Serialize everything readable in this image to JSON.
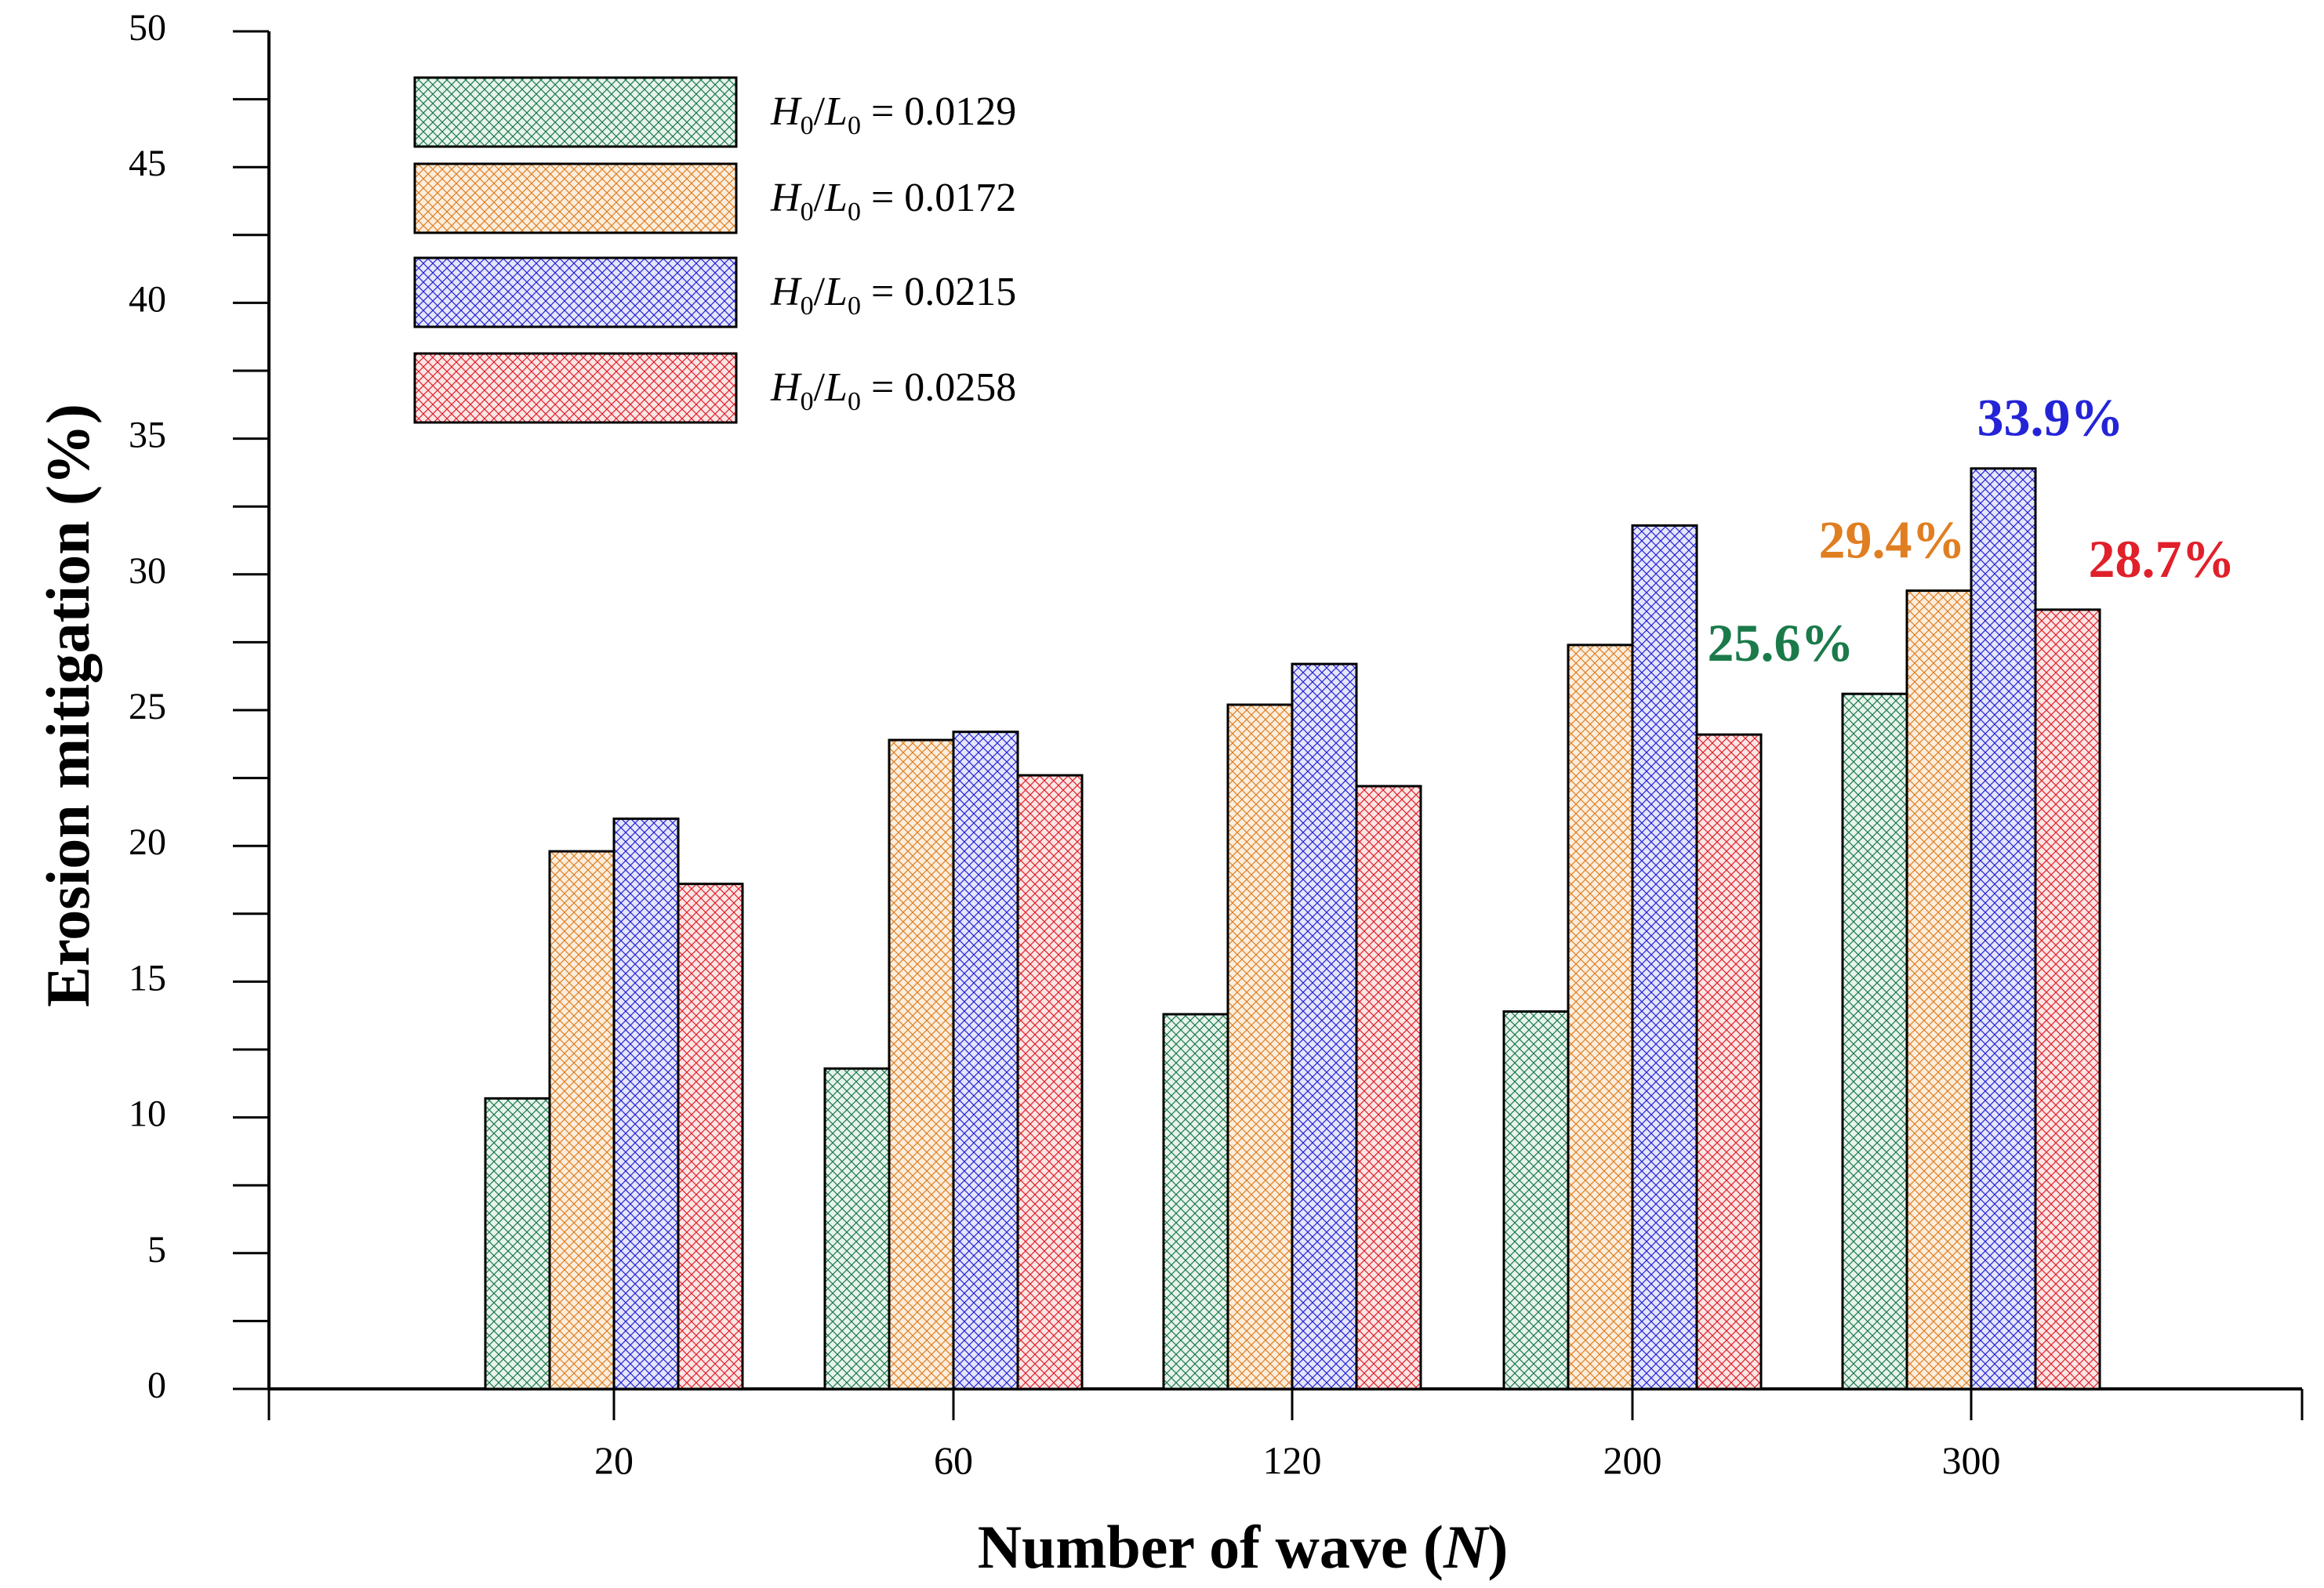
{
  "colors": {
    "green": "#1b7a4a",
    "orange": "#e07e22",
    "blue": "#2424d6",
    "red": "#e0202a",
    "green_fill": "#e8f3ec",
    "orange_fill": "#fbeede",
    "blue_fill": "#e6e6fa",
    "red_fill": "#fbe6e6",
    "axis": "#000000"
  },
  "chart_data": {
    "type": "bar",
    "title": "",
    "xlabel": "Number of wave (N)",
    "xlabel_main": "Number of wave (",
    "xlabel_var": "N",
    "xlabel_end": ")",
    "ylabel": "Erosion mitigation (%)",
    "ylim": [
      0,
      50
    ],
    "ytick_step": 5,
    "yticks": [
      "0",
      "5",
      "10",
      "15",
      "20",
      "25",
      "30",
      "35",
      "40",
      "45",
      "50"
    ],
    "categories": [
      "20",
      "60",
      "120",
      "200",
      "300"
    ],
    "series": [
      {
        "name": "H0/L0 = 0.0129",
        "h": "H",
        "h_sub": "0",
        "l": "L",
        "l_sub": "0",
        "value_text": " = 0.0129",
        "color_key": "green",
        "values": [
          10.7,
          11.8,
          13.8,
          13.9,
          25.6
        ]
      },
      {
        "name": "H0/L0 = 0.0172",
        "h": "H",
        "h_sub": "0",
        "l": "L",
        "l_sub": "0",
        "value_text": " = 0.0172",
        "color_key": "orange",
        "values": [
          19.8,
          23.9,
          25.2,
          27.4,
          29.4
        ]
      },
      {
        "name": "H0/L0 = 0.0215",
        "h": "H",
        "h_sub": "0",
        "l": "L",
        "l_sub": "0",
        "value_text": " = 0.0215",
        "color_key": "blue",
        "values": [
          21.0,
          24.2,
          26.7,
          31.8,
          33.9
        ]
      },
      {
        "name": "H0/L0 = 0.0258",
        "h": "H",
        "h_sub": "0",
        "l": "L",
        "l_sub": "0",
        "value_text": " = 0.0258",
        "color_key": "red",
        "values": [
          18.6,
          22.6,
          22.2,
          24.1,
          28.7
        ]
      }
    ],
    "annotations": [
      {
        "text": "25.6%",
        "series_index": 0,
        "category_index": 4,
        "color_key": "green"
      },
      {
        "text": "29.4%",
        "series_index": 1,
        "category_index": 4,
        "color_key": "orange"
      },
      {
        "text": "33.9%",
        "series_index": 2,
        "category_index": 4,
        "color_key": "blue"
      },
      {
        "text": "28.7%",
        "series_index": 3,
        "category_index": 4,
        "color_key": "red"
      }
    ],
    "legend_position": "top-left",
    "grid": false
  }
}
